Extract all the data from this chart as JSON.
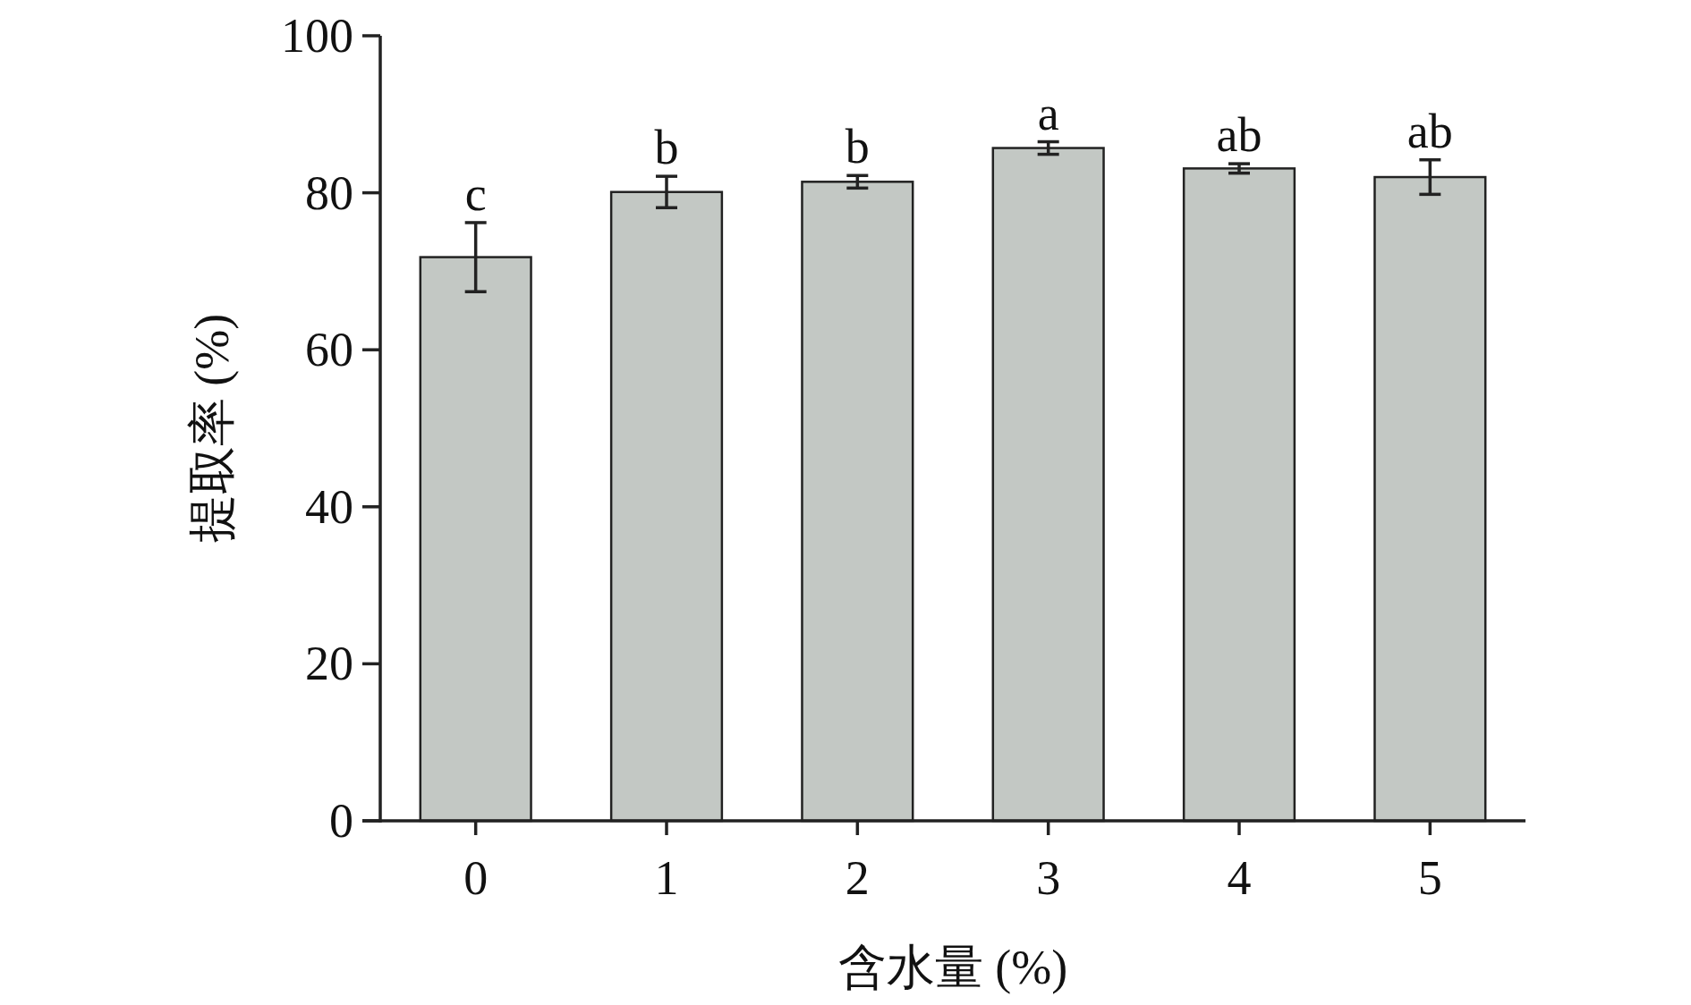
{
  "chart_data": {
    "type": "bar",
    "xlabel": "含水量 (%)",
    "ylabel": "提取率 (%)",
    "categories": [
      "0",
      "1",
      "2",
      "3",
      "4",
      "5"
    ],
    "values": [
      71.8,
      80.1,
      81.4,
      85.7,
      83.1,
      82.0
    ],
    "errors": [
      4.4,
      2.0,
      0.8,
      0.8,
      0.6,
      2.2
    ],
    "color": "#c3c8c4",
    "ylim": [
      0,
      100
    ],
    "yticks": [
      0,
      20,
      40,
      60,
      80,
      100
    ],
    "grid": false,
    "annotations": [
      {
        "text": "c",
        "x": "0",
        "y": 76.2
      },
      {
        "text": "b",
        "x": "1",
        "y": 82.1
      },
      {
        "text": "b",
        "x": "2",
        "y": 82.2
      },
      {
        "text": "a",
        "x": "3",
        "y": 86.5
      },
      {
        "text": "ab",
        "x": "4",
        "y": 83.7
      },
      {
        "text": "ab",
        "x": "5",
        "y": 84.2
      }
    ]
  }
}
